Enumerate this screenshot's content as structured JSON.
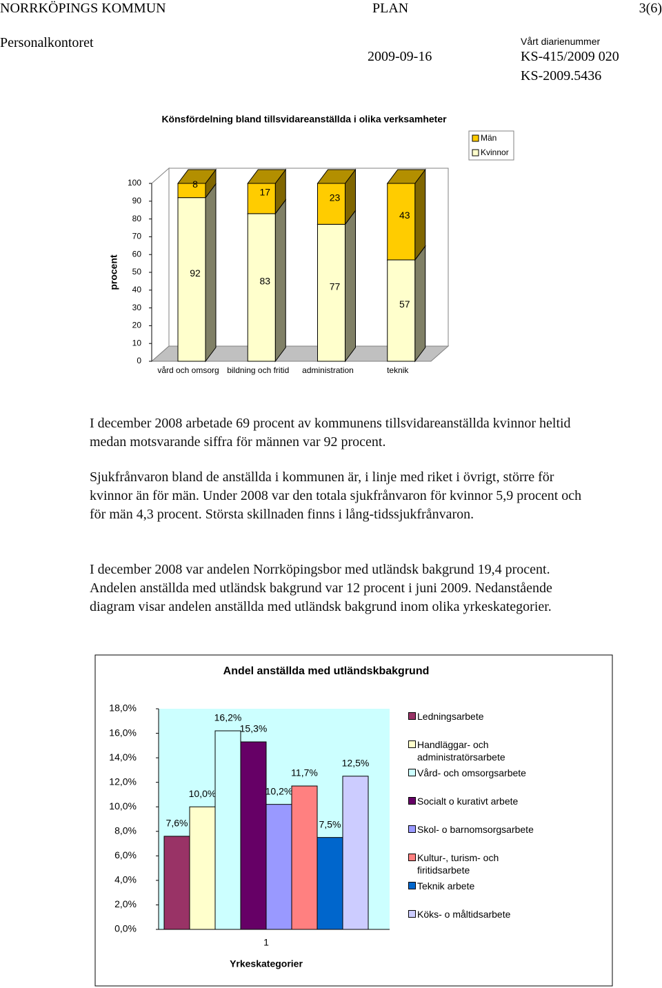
{
  "header": {
    "organization": "NORRKÖPINGS KOMMUN",
    "doc_type": "PLAN",
    "page": "3(6)",
    "department": "Personalkontoret",
    "date": "2009-09-16",
    "reference_label": "Vårt diarienummer",
    "reference_numbers": [
      "KS-415/2009 020",
      "KS-2009.5436"
    ]
  },
  "chart_data": [
    {
      "type": "bar",
      "stacked": true,
      "three_d": true,
      "title": "Könsfördelning bland tillsvidareanställda i olika verksamheter",
      "y_label": "procent",
      "categories": [
        "vård och omsorg",
        "bildning och fritid",
        "administration",
        "teknik"
      ],
      "series": [
        {
          "name": "Kvinnor",
          "color": "#ffffcc",
          "values": [
            92,
            83,
            77,
            57
          ]
        },
        {
          "name": "Män",
          "color": "#ffcc00",
          "values": [
            8,
            17,
            23,
            43
          ]
        }
      ],
      "ylim": [
        0,
        100
      ],
      "yticks": [
        0,
        10,
        20,
        30,
        40,
        50,
        60,
        70,
        80,
        90,
        100
      ],
      "grid": false,
      "legend": "top-right"
    },
    {
      "type": "bar",
      "stacked": false,
      "three_d": false,
      "title": "Andel anställda med utländskbakgrund",
      "x_label": "Yrkeskategorier",
      "categories": [
        "1"
      ],
      "series": [
        {
          "name": "Ledningsarbete",
          "color": "#993366",
          "values": [
            7.6
          ],
          "value_labels": [
            "7,6%"
          ]
        },
        {
          "name": "Handläggar- och administratörsarbete",
          "color": "#ffffcc",
          "values": [
            10.0
          ],
          "value_labels": [
            "10,0%"
          ]
        },
        {
          "name": "Vård- och omsorgsarbete",
          "color": "#ccffff",
          "values": [
            16.2
          ],
          "value_labels": [
            "16,2%"
          ]
        },
        {
          "name": "Socialt o kurativt arbete",
          "color": "#660066",
          "values": [
            15.3
          ],
          "value_labels": [
            "15,3%"
          ]
        },
        {
          "name": "Skol- o barnomsorgsarbete",
          "color": "#9999ff",
          "values": [
            10.2
          ],
          "value_labels": [
            "10,2%"
          ]
        },
        {
          "name": "Kultur-, turism- och firitidsarbete",
          "color": "#ff8080",
          "values": [
            11.7
          ],
          "value_labels": [
            "11,7%"
          ]
        },
        {
          "name": "Teknik arbete",
          "color": "#0066cc",
          "values": [
            7.5
          ],
          "value_labels": [
            "7,5%"
          ]
        },
        {
          "name": "Köks- o måltidsarbete",
          "color": "#ccccff",
          "values": [
            12.5
          ],
          "value_labels": [
            "12,5%"
          ]
        }
      ],
      "ylim": [
        0,
        18
      ],
      "yticks": [
        {
          "value": 0,
          "label": "0,0%"
        },
        {
          "value": 2,
          "label": "2,0%"
        },
        {
          "value": 4,
          "label": "4,0%"
        },
        {
          "value": 6,
          "label": "6,0%"
        },
        {
          "value": 8,
          "label": "8,0%"
        },
        {
          "value": 10,
          "label": "10,0%"
        },
        {
          "value": 12,
          "label": "12,0%"
        },
        {
          "value": 14,
          "label": "14,0%"
        },
        {
          "value": 16,
          "label": "16,0%"
        },
        {
          "value": 18,
          "label": "18,0%"
        }
      ],
      "grid": false,
      "legend": "right",
      "plot_background": "#ccffff"
    }
  ],
  "paragraphs": [
    "I december 2008 arbetade 69 procent av kommunens tillsvidareanställda kvinnor heltid medan motsvarande siffra för männen var 92 procent.",
    "Sjukfrånvaron bland de anställda i kommunen är, i linje med riket i övrigt, större för kvinnor än för män. Under 2008 var den totala sjukfrånvaron för kvinnor 5,9 procent och för män 4,3 procent. Största skillnaden finns i lång-tidssjukfrånvaron.",
    "I december 2008 var andelen Norrköpingsbor med utländsk bakgrund 19,4 procent. Andelen anställda med utländsk bakgrund var 12 procent i juni 2009. Nedanstående diagram visar andelen anställda med utländsk bakgrund inom olika yrkeskategorier."
  ]
}
